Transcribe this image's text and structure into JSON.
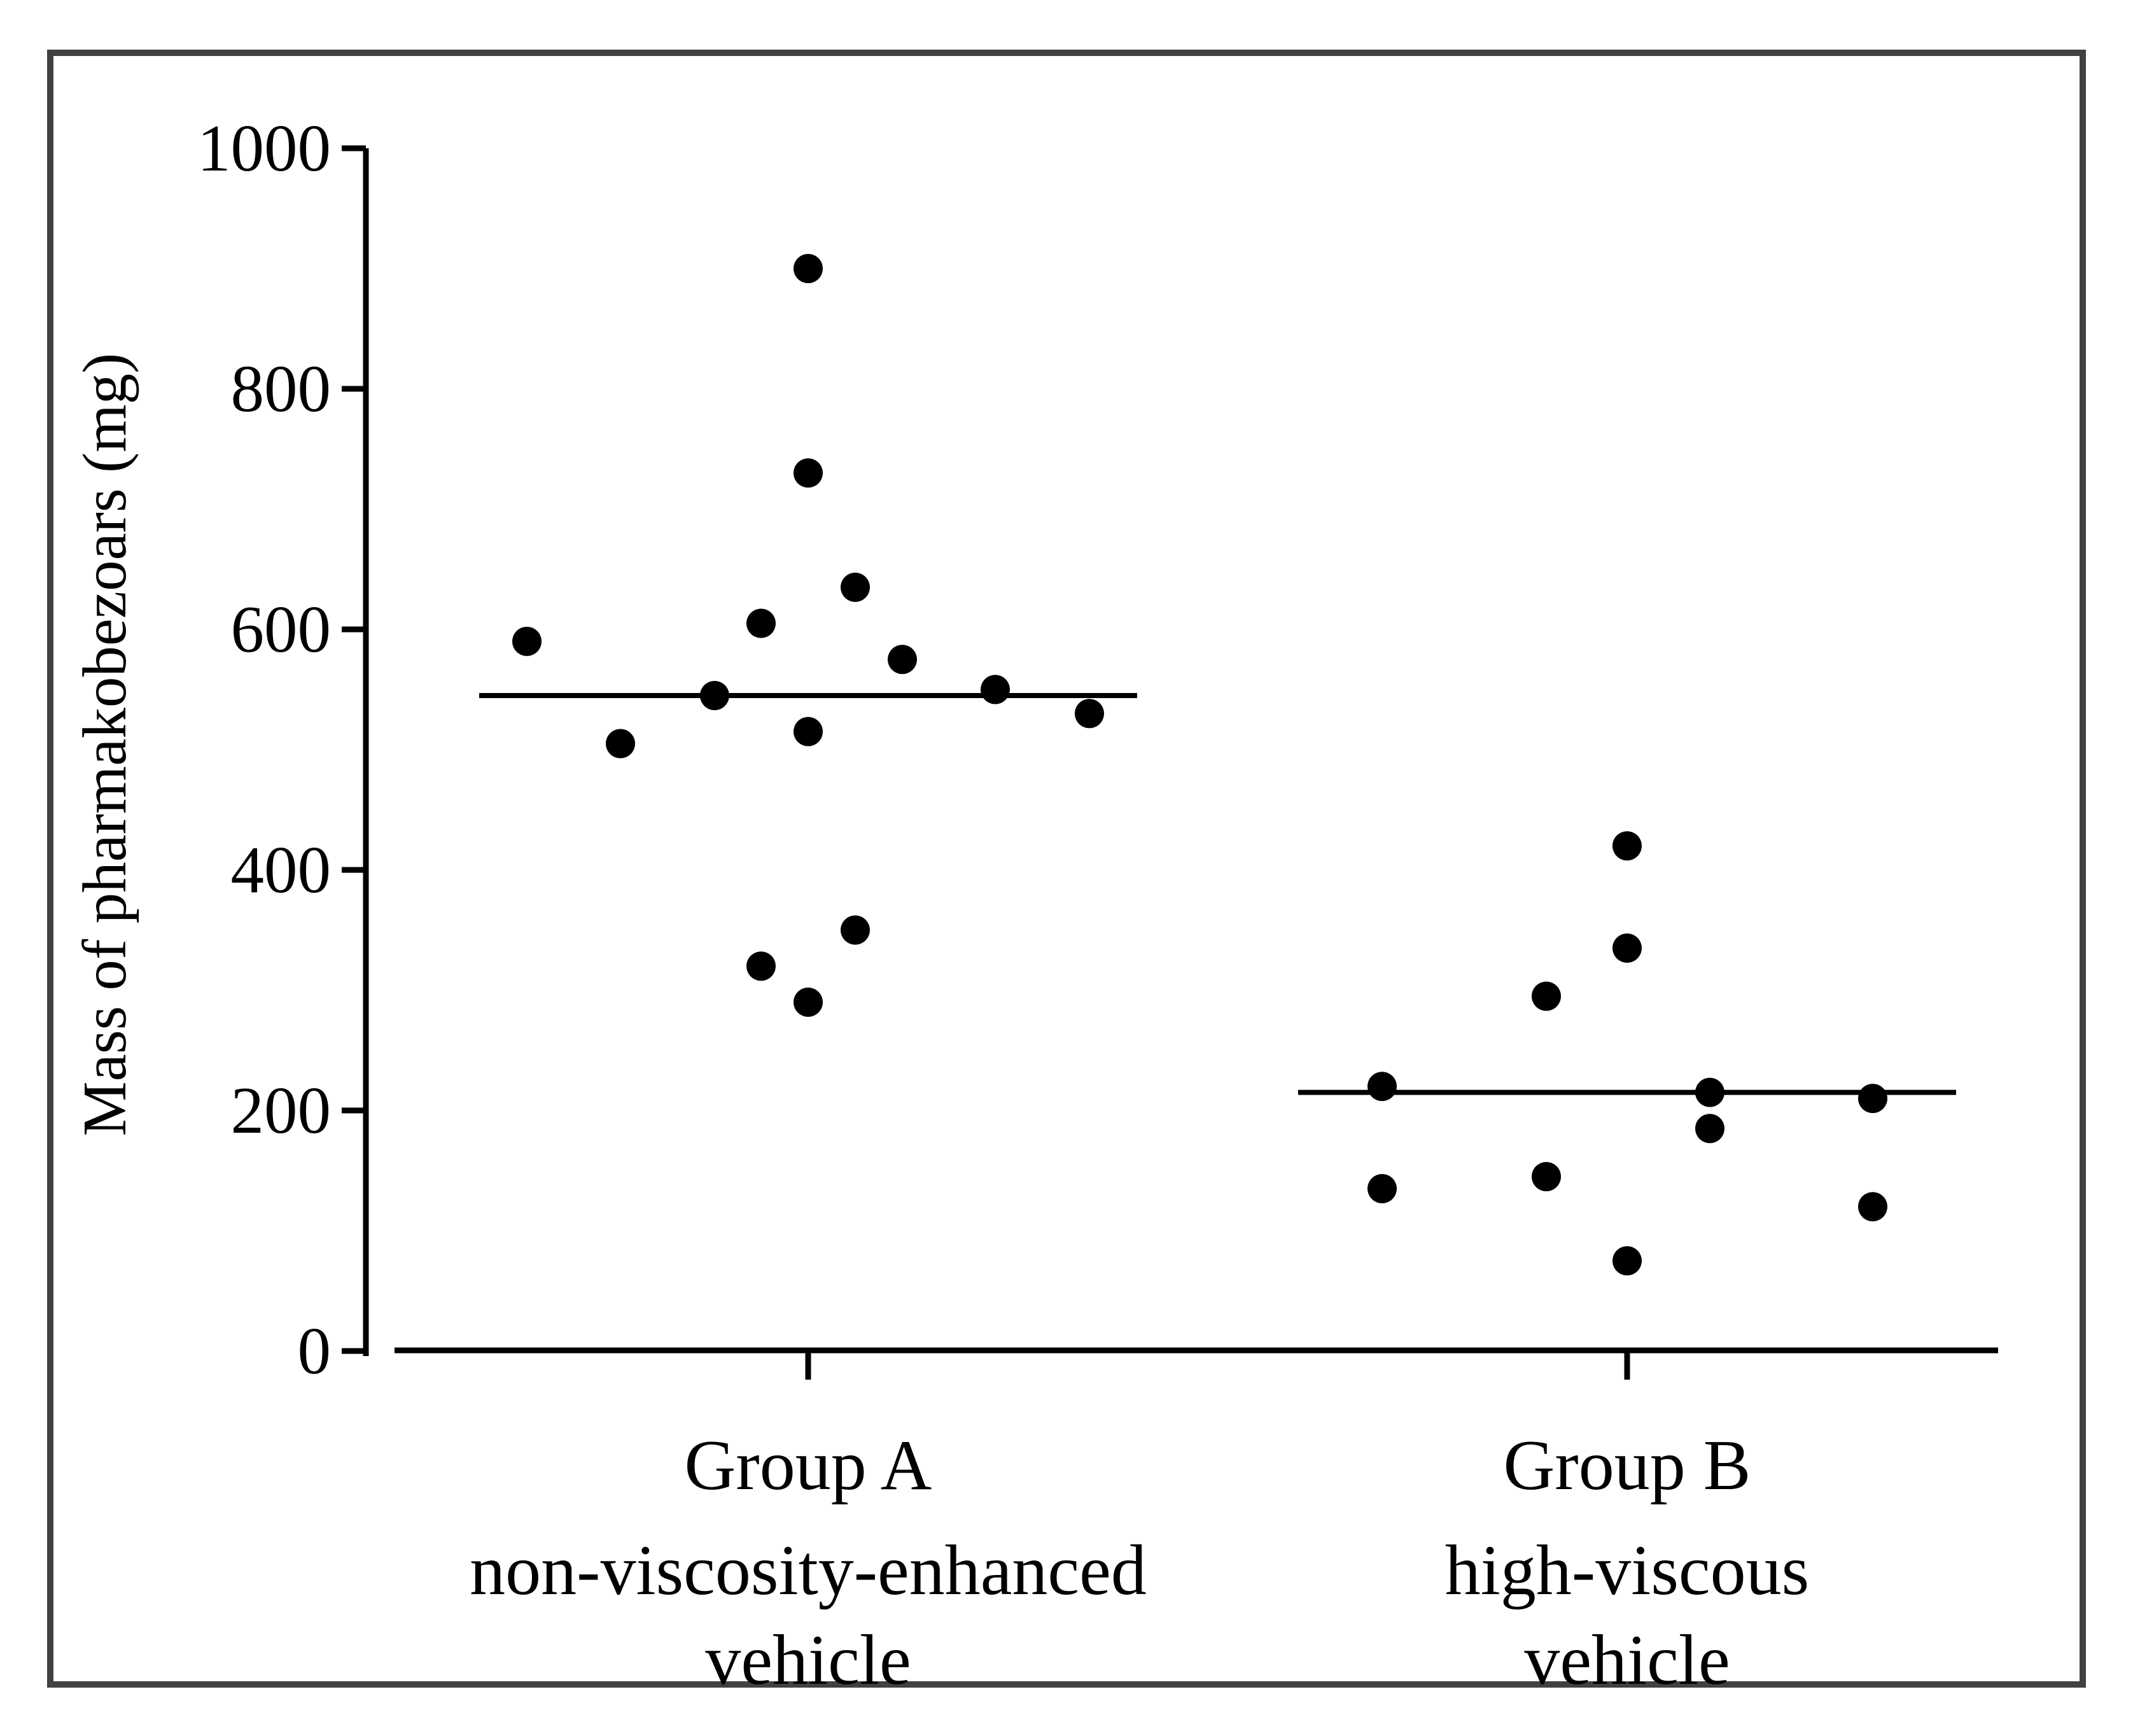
{
  "figure": {
    "background": "#ffffff",
    "border_color": "#414141",
    "ink_color": "#000000"
  },
  "chart_data": {
    "type": "scatter",
    "title": "",
    "ylabel": "Mass of pharmakobezoars (mg)",
    "xlabel": "",
    "ylim": [
      0,
      1000
    ],
    "yticks": [
      0,
      200,
      400,
      600,
      800,
      1000
    ],
    "grid": false,
    "legend": false,
    "marker": "filled-black-circle",
    "mean_line": "horizontal line at group mean",
    "groups": [
      {
        "label": "Group A",
        "sublabel": [
          "non-viscosity-enhanced",
          "vehicle"
        ],
        "mean": 545,
        "points": [
          {
            "jitter": -442,
            "value": 590
          },
          {
            "jitter": -295,
            "value": 505
          },
          {
            "jitter": -147,
            "value": 545
          },
          {
            "jitter": -74,
            "value": 605
          },
          {
            "jitter": -74,
            "value": 320
          },
          {
            "jitter": 0,
            "value": 900
          },
          {
            "jitter": 0,
            "value": 730
          },
          {
            "jitter": 0,
            "value": 515
          },
          {
            "jitter": 0,
            "value": 290
          },
          {
            "jitter": 74,
            "value": 635
          },
          {
            "jitter": 74,
            "value": 350
          },
          {
            "jitter": 148,
            "value": 575
          },
          {
            "jitter": 294,
            "value": 550
          },
          {
            "jitter": 442,
            "value": 530
          }
        ]
      },
      {
        "label": "Group B",
        "sublabel": [
          "high-viscous",
          "vehicle"
        ],
        "mean": 215,
        "points": [
          {
            "jitter": -385,
            "value": 220
          },
          {
            "jitter": -385,
            "value": 135
          },
          {
            "jitter": -127,
            "value": 295
          },
          {
            "jitter": -127,
            "value": 145
          },
          {
            "jitter": 0,
            "value": 420
          },
          {
            "jitter": 0,
            "value": 335
          },
          {
            "jitter": 0,
            "value": 75
          },
          {
            "jitter": 130,
            "value": 215
          },
          {
            "jitter": 130,
            "value": 185
          },
          {
            "jitter": 386,
            "value": 210
          },
          {
            "jitter": 386,
            "value": 120
          }
        ]
      }
    ]
  }
}
